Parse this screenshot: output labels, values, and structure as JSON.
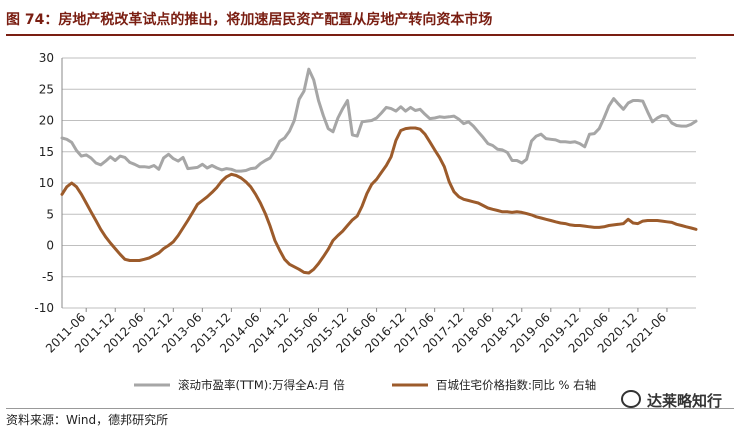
{
  "header": {
    "title": "图 74：房地产税改革试点的推出，将加速居民资产配置从房地产转向资本市场"
  },
  "footer": {
    "source": "资料来源：Wind，德邦研究所",
    "watermark": "达莱略知行"
  },
  "colors": {
    "series1": "#a6a6a6",
    "series2": "#9c5b2b",
    "title": "#7a1e12",
    "grid": "#bfbfbf"
  },
  "chart_data": {
    "type": "line",
    "title": "",
    "xlabel": "",
    "ylabel": "",
    "ylim": [
      -10,
      30
    ],
    "yticks": [
      -10,
      -5,
      0,
      5,
      10,
      15,
      20,
      25,
      30
    ],
    "xticks": [
      "2011-06",
      "2011-12",
      "2012-06",
      "2012-12",
      "2013-06",
      "2013-12",
      "2014-06",
      "2014-12",
      "2015-06",
      "2015-12",
      "2016-06",
      "2016-12",
      "2017-06",
      "2017-12",
      "2018-06",
      "2018-12",
      "2019-06",
      "2019-12",
      "2020-06",
      "2020-12",
      "2021-06"
    ],
    "grid": "horizontal",
    "legend_position": "bottom",
    "series": [
      {
        "name": "滚动市盈率(TTM):万得全A:月 倍",
        "color": "#a6a6a6",
        "points": [
          [
            "2011-01",
            17.2
          ],
          [
            "2011-02",
            17.0
          ],
          [
            "2011-03",
            16.5
          ],
          [
            "2011-04",
            15.2
          ],
          [
            "2011-05",
            14.3
          ],
          [
            "2011-06",
            14.5
          ],
          [
            "2011-07",
            14.0
          ],
          [
            "2011-08",
            13.2
          ],
          [
            "2011-09",
            12.9
          ],
          [
            "2011-10",
            13.5
          ],
          [
            "2011-11",
            14.2
          ],
          [
            "2011-12",
            13.6
          ],
          [
            "2012-01",
            14.3
          ],
          [
            "2012-02",
            14.1
          ],
          [
            "2012-03",
            13.3
          ],
          [
            "2012-04",
            13.0
          ],
          [
            "2012-05",
            12.6
          ],
          [
            "2012-06",
            12.6
          ],
          [
            "2012-07",
            12.5
          ],
          [
            "2012-08",
            12.8
          ],
          [
            "2012-09",
            12.2
          ],
          [
            "2012-10",
            14.0
          ],
          [
            "2012-11",
            14.6
          ],
          [
            "2012-12",
            13.9
          ],
          [
            "2013-01",
            13.5
          ],
          [
            "2013-02",
            14.1
          ],
          [
            "2013-03",
            12.3
          ],
          [
            "2013-04",
            12.4
          ],
          [
            "2013-05",
            12.5
          ],
          [
            "2013-06",
            13.0
          ],
          [
            "2013-07",
            12.4
          ],
          [
            "2013-08",
            12.8
          ],
          [
            "2013-09",
            12.4
          ],
          [
            "2013-10",
            12.1
          ],
          [
            "2013-11",
            12.3
          ],
          [
            "2013-12",
            12.2
          ],
          [
            "2014-01",
            11.9
          ],
          [
            "2014-02",
            11.9
          ],
          [
            "2014-03",
            12.0
          ],
          [
            "2014-04",
            12.3
          ],
          [
            "2014-05",
            12.4
          ],
          [
            "2014-06",
            13.1
          ],
          [
            "2014-07",
            13.6
          ],
          [
            "2014-08",
            14.0
          ],
          [
            "2014-09",
            15.2
          ],
          [
            "2014-10",
            16.7
          ],
          [
            "2014-11",
            17.2
          ],
          [
            "2014-12",
            18.3
          ],
          [
            "2015-01",
            20.0
          ],
          [
            "2015-02",
            23.4
          ],
          [
            "2015-03",
            24.7
          ],
          [
            "2015-04",
            28.2
          ],
          [
            "2015-05",
            26.5
          ],
          [
            "2015-06",
            23.2
          ],
          [
            "2015-07",
            20.8
          ],
          [
            "2015-08",
            18.7
          ],
          [
            "2015-09",
            18.2
          ],
          [
            "2015-10",
            20.4
          ],
          [
            "2015-11",
            21.9
          ],
          [
            "2015-12",
            23.2
          ],
          [
            "2016-01",
            17.7
          ],
          [
            "2016-02",
            17.5
          ],
          [
            "2016-03",
            19.8
          ],
          [
            "2016-04",
            19.9
          ],
          [
            "2016-05",
            20.0
          ],
          [
            "2016-06",
            20.4
          ],
          [
            "2016-07",
            21.2
          ],
          [
            "2016-08",
            22.1
          ],
          [
            "2016-09",
            21.9
          ],
          [
            "2016-10",
            21.5
          ],
          [
            "2016-11",
            22.2
          ],
          [
            "2016-12",
            21.5
          ],
          [
            "2017-01",
            22.1
          ],
          [
            "2017-02",
            21.6
          ],
          [
            "2017-03",
            21.8
          ],
          [
            "2017-04",
            21.0
          ],
          [
            "2017-05",
            20.3
          ],
          [
            "2017-06",
            20.4
          ],
          [
            "2017-07",
            20.6
          ],
          [
            "2017-08",
            20.5
          ],
          [
            "2017-09",
            20.6
          ],
          [
            "2017-10",
            20.7
          ],
          [
            "2017-11",
            20.2
          ],
          [
            "2017-12",
            19.5
          ],
          [
            "2018-01",
            19.8
          ],
          [
            "2018-02",
            19.1
          ],
          [
            "2018-03",
            18.2
          ],
          [
            "2018-04",
            17.3
          ],
          [
            "2018-05",
            16.3
          ],
          [
            "2018-06",
            16.0
          ],
          [
            "2018-07",
            15.4
          ],
          [
            "2018-08",
            15.3
          ],
          [
            "2018-09",
            14.9
          ],
          [
            "2018-10",
            13.6
          ],
          [
            "2018-11",
            13.6
          ],
          [
            "2018-12",
            13.2
          ],
          [
            "2019-01",
            13.8
          ],
          [
            "2019-02",
            16.7
          ],
          [
            "2019-03",
            17.5
          ],
          [
            "2019-04",
            17.8
          ],
          [
            "2019-05",
            17.1
          ],
          [
            "2019-06",
            17.0
          ],
          [
            "2019-07",
            16.9
          ],
          [
            "2019-08",
            16.6
          ],
          [
            "2019-09",
            16.6
          ],
          [
            "2019-10",
            16.5
          ],
          [
            "2019-11",
            16.6
          ],
          [
            "2019-12",
            16.3
          ],
          [
            "2020-01",
            15.8
          ],
          [
            "2020-02",
            17.8
          ],
          [
            "2020-03",
            17.9
          ],
          [
            "2020-04",
            18.7
          ],
          [
            "2020-05",
            20.4
          ],
          [
            "2020-06",
            22.3
          ],
          [
            "2020-07",
            23.5
          ],
          [
            "2020-08",
            22.6
          ],
          [
            "2020-09",
            21.8
          ],
          [
            "2020-10",
            22.8
          ],
          [
            "2020-11",
            23.2
          ],
          [
            "2020-12",
            23.2
          ],
          [
            "2021-01",
            23.1
          ],
          [
            "2021-02",
            21.4
          ],
          [
            "2021-03",
            19.8
          ],
          [
            "2021-04",
            20.4
          ],
          [
            "2021-05",
            20.8
          ],
          [
            "2021-06",
            20.7
          ],
          [
            "2021-07",
            19.6
          ],
          [
            "2021-08",
            19.2
          ],
          [
            "2021-09",
            19.1
          ],
          [
            "2021-10",
            19.1
          ],
          [
            "2021-11",
            19.4
          ],
          [
            "2021-12",
            19.9
          ]
        ]
      },
      {
        "name": "百城住宅价格指数:同比 % 右轴",
        "color": "#9c5b2b",
        "points": [
          [
            "2011-01",
            8.2
          ],
          [
            "2011-02",
            9.4
          ],
          [
            "2011-03",
            10.0
          ],
          [
            "2011-04",
            9.4
          ],
          [
            "2011-05",
            8.2
          ],
          [
            "2011-06",
            6.8
          ],
          [
            "2011-07",
            5.4
          ],
          [
            "2011-08",
            4.0
          ],
          [
            "2011-09",
            2.6
          ],
          [
            "2011-10",
            1.4
          ],
          [
            "2011-11",
            0.4
          ],
          [
            "2011-12",
            -0.5
          ],
          [
            "2012-01",
            -1.4
          ],
          [
            "2012-02",
            -2.2
          ],
          [
            "2012-03",
            -2.4
          ],
          [
            "2012-04",
            -2.4
          ],
          [
            "2012-05",
            -2.4
          ],
          [
            "2012-06",
            -2.2
          ],
          [
            "2012-07",
            -2.0
          ],
          [
            "2012-08",
            -1.6
          ],
          [
            "2012-09",
            -1.2
          ],
          [
            "2012-10",
            -0.5
          ],
          [
            "2012-11",
            0.0
          ],
          [
            "2012-12",
            0.6
          ],
          [
            "2013-01",
            1.6
          ],
          [
            "2013-02",
            2.8
          ],
          [
            "2013-03",
            4.0
          ],
          [
            "2013-04",
            5.3
          ],
          [
            "2013-05",
            6.6
          ],
          [
            "2013-06",
            7.2
          ],
          [
            "2013-07",
            7.8
          ],
          [
            "2013-08",
            8.5
          ],
          [
            "2013-09",
            9.3
          ],
          [
            "2013-10",
            10.3
          ],
          [
            "2013-11",
            11.0
          ],
          [
            "2013-12",
            11.4
          ],
          [
            "2014-01",
            11.2
          ],
          [
            "2014-02",
            10.8
          ],
          [
            "2014-03",
            10.2
          ],
          [
            "2014-04",
            9.4
          ],
          [
            "2014-05",
            8.2
          ],
          [
            "2014-06",
            6.8
          ],
          [
            "2014-07",
            5.1
          ],
          [
            "2014-08",
            3.1
          ],
          [
            "2014-09",
            0.8
          ],
          [
            "2014-10",
            -0.8
          ],
          [
            "2014-11",
            -2.2
          ],
          [
            "2014-12",
            -3.0
          ],
          [
            "2015-01",
            -3.4
          ],
          [
            "2015-02",
            -3.8
          ],
          [
            "2015-03",
            -4.3
          ],
          [
            "2015-04",
            -4.4
          ],
          [
            "2015-05",
            -3.8
          ],
          [
            "2015-06",
            -2.9
          ],
          [
            "2015-07",
            -1.8
          ],
          [
            "2015-08",
            -0.6
          ],
          [
            "2015-09",
            0.8
          ],
          [
            "2015-10",
            1.6
          ],
          [
            "2015-11",
            2.3
          ],
          [
            "2015-12",
            3.2
          ],
          [
            "2016-01",
            4.1
          ],
          [
            "2016-02",
            4.7
          ],
          [
            "2016-03",
            6.3
          ],
          [
            "2016-04",
            8.3
          ],
          [
            "2016-05",
            9.8
          ],
          [
            "2016-06",
            10.6
          ],
          [
            "2016-07",
            11.7
          ],
          [
            "2016-08",
            12.8
          ],
          [
            "2016-09",
            14.2
          ],
          [
            "2016-10",
            16.8
          ],
          [
            "2016-11",
            18.4
          ],
          [
            "2016-12",
            18.7
          ],
          [
            "2017-01",
            18.8
          ],
          [
            "2017-02",
            18.8
          ],
          [
            "2017-03",
            18.6
          ],
          [
            "2017-04",
            17.8
          ],
          [
            "2017-05",
            16.6
          ],
          [
            "2017-06",
            15.3
          ],
          [
            "2017-07",
            14.1
          ],
          [
            "2017-08",
            12.6
          ],
          [
            "2017-09",
            10.2
          ],
          [
            "2017-10",
            8.6
          ],
          [
            "2017-11",
            7.8
          ],
          [
            "2017-12",
            7.4
          ],
          [
            "2018-01",
            7.2
          ],
          [
            "2018-02",
            7.0
          ],
          [
            "2018-03",
            6.8
          ],
          [
            "2018-04",
            6.4
          ],
          [
            "2018-05",
            6.0
          ],
          [
            "2018-06",
            5.8
          ],
          [
            "2018-07",
            5.6
          ],
          [
            "2018-08",
            5.4
          ],
          [
            "2018-09",
            5.4
          ],
          [
            "2018-10",
            5.3
          ],
          [
            "2018-11",
            5.4
          ],
          [
            "2018-12",
            5.3
          ],
          [
            "2019-01",
            5.1
          ],
          [
            "2019-02",
            4.9
          ],
          [
            "2019-03",
            4.6
          ],
          [
            "2019-04",
            4.4
          ],
          [
            "2019-05",
            4.2
          ],
          [
            "2019-06",
            4.0
          ],
          [
            "2019-07",
            3.8
          ],
          [
            "2019-08",
            3.6
          ],
          [
            "2019-09",
            3.5
          ],
          [
            "2019-10",
            3.3
          ],
          [
            "2019-11",
            3.2
          ],
          [
            "2019-12",
            3.2
          ],
          [
            "2020-01",
            3.1
          ],
          [
            "2020-02",
            3.0
          ],
          [
            "2020-03",
            2.9
          ],
          [
            "2020-04",
            2.9
          ],
          [
            "2020-05",
            3.0
          ],
          [
            "2020-06",
            3.2
          ],
          [
            "2020-07",
            3.3
          ],
          [
            "2020-08",
            3.4
          ],
          [
            "2020-09",
            3.5
          ],
          [
            "2020-10",
            4.2
          ],
          [
            "2020-11",
            3.6
          ],
          [
            "2020-12",
            3.5
          ],
          [
            "2021-01",
            3.9
          ],
          [
            "2021-02",
            4.0
          ],
          [
            "2021-03",
            4.0
          ],
          [
            "2021-04",
            4.0
          ],
          [
            "2021-05",
            3.9
          ],
          [
            "2021-06",
            3.8
          ],
          [
            "2021-07",
            3.7
          ],
          [
            "2021-08",
            3.4
          ],
          [
            "2021-09",
            3.2
          ],
          [
            "2021-10",
            3.0
          ],
          [
            "2021-11",
            2.8
          ],
          [
            "2021-12",
            2.6
          ]
        ]
      }
    ]
  }
}
